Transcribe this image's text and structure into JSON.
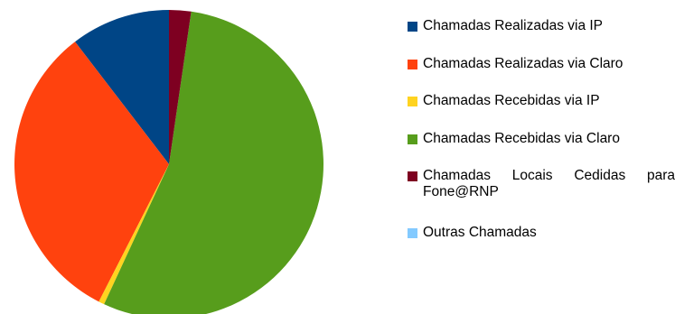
{
  "chart_data": {
    "type": "pie",
    "title": "",
    "start_angle_deg": 90,
    "direction": "clockwise",
    "series": [
      {
        "name": "Chamadas Realizadas via IP",
        "value": 10.4,
        "color": "#004586"
      },
      {
        "name": "Chamadas Realizadas via Claro",
        "value": 32.1,
        "color": "#ff420e"
      },
      {
        "name": "Chamadas Recebidas via IP",
        "value": 0.6,
        "color": "#ffd320"
      },
      {
        "name": "Chamadas Recebidas via Claro",
        "value": 54.6,
        "color": "#579d1c"
      },
      {
        "name": "Chamadas Locais Cedidas para Fone@RNP",
        "value": 2.3,
        "color": "#7e0021"
      },
      {
        "name": "Outras Chamadas",
        "value": 0.0,
        "color": "#83caff"
      }
    ],
    "legend_position": "right"
  }
}
